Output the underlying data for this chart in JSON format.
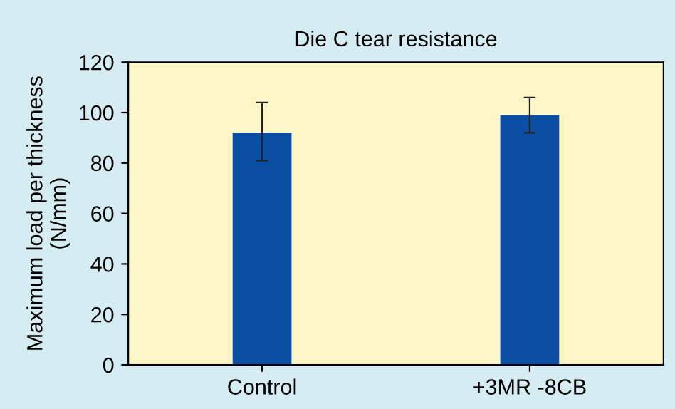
{
  "chart_data": {
    "type": "bar",
    "title": "Die C tear resistance",
    "ylabel": "Maximum load per thickness\n(N/mm)",
    "categories": [
      "Control",
      "+3MR -8CB"
    ],
    "values": [
      92,
      99
    ],
    "errors": [
      [
        81,
        104
      ],
      [
        92,
        106
      ]
    ],
    "color": "#0a4fa3",
    "ylim": [
      0,
      120
    ],
    "yticks": [
      0,
      20,
      40,
      60,
      80,
      100,
      120
    ],
    "grid": false
  }
}
